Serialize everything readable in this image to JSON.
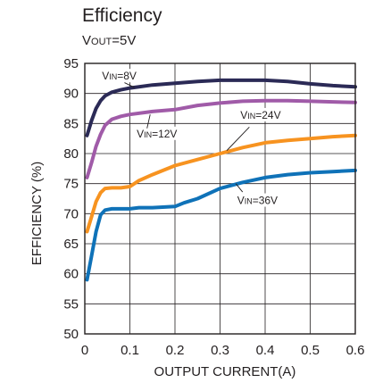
{
  "chart_data": {
    "type": "line",
    "title": "Efficiency",
    "subtitle": {
      "main": "V",
      "sub": "OUT",
      "value": "=5V"
    },
    "xlabel": "OUTPUT CURRENT(A)",
    "ylabel": "EFFICIENCY (%)",
    "xlim": [
      0,
      0.6
    ],
    "ylim": [
      50,
      95
    ],
    "xticks": [
      0,
      0.1,
      0.2,
      0.3,
      0.4,
      0.5,
      0.6
    ],
    "xtick_labels": [
      "0",
      "0.1",
      "0.2",
      "0.3",
      "0.4",
      "0.5",
      "0.6"
    ],
    "yticks": [
      50,
      55,
      60,
      65,
      70,
      75,
      80,
      85,
      90,
      95
    ],
    "ytick_labels": [
      "50",
      "55",
      "60",
      "65",
      "70",
      "75",
      "80",
      "85",
      "90",
      "95"
    ],
    "grid": true,
    "series": [
      {
        "name": "VIN=8V",
        "label": {
          "main": "V",
          "sub": "IN",
          "value": "=8V"
        },
        "color": "#2b2a56",
        "x": [
          0.005,
          0.015,
          0.025,
          0.035,
          0.045,
          0.06,
          0.08,
          0.1,
          0.15,
          0.2,
          0.25,
          0.3,
          0.35,
          0.4,
          0.45,
          0.5,
          0.55,
          0.6
        ],
        "y": [
          83,
          85.5,
          87.5,
          88.8,
          89.6,
          90.2,
          90.6,
          90.9,
          91.4,
          91.7,
          92.0,
          92.2,
          92.2,
          92.2,
          92.0,
          91.6,
          91.3,
          91.1
        ]
      },
      {
        "name": "VIN=12V",
        "label": {
          "main": "V",
          "sub": "IN",
          "value": "=12V"
        },
        "color": "#a05ba8",
        "x": [
          0.005,
          0.015,
          0.025,
          0.035,
          0.045,
          0.06,
          0.08,
          0.1,
          0.15,
          0.2,
          0.25,
          0.3,
          0.35,
          0.4,
          0.45,
          0.5,
          0.55,
          0.6
        ],
        "y": [
          76,
          78.5,
          81.2,
          83.2,
          84.7,
          85.7,
          86.2,
          86.5,
          87.0,
          87.3,
          88.0,
          88.4,
          88.7,
          88.8,
          88.8,
          88.7,
          88.6,
          88.5
        ]
      },
      {
        "name": "VIN=24V",
        "label": {
          "main": "V",
          "sub": "IN",
          "value": "=24V"
        },
        "color": "#f79320",
        "x": [
          0.005,
          0.015,
          0.025,
          0.035,
          0.045,
          0.06,
          0.08,
          0.1,
          0.12,
          0.15,
          0.2,
          0.25,
          0.3,
          0.35,
          0.4,
          0.45,
          0.5,
          0.55,
          0.6
        ],
        "y": [
          67,
          69.5,
          72,
          73.5,
          74.2,
          74.3,
          74.3,
          74.5,
          75.5,
          76.5,
          78.0,
          79.0,
          80.0,
          81.0,
          81.8,
          82.2,
          82.5,
          82.8,
          83.0
        ]
      },
      {
        "name": "VIN=36V",
        "label": {
          "main": "V",
          "sub": "IN",
          "value": "=36V"
        },
        "color": "#0f72b8",
        "x": [
          0.005,
          0.015,
          0.025,
          0.035,
          0.045,
          0.06,
          0.08,
          0.1,
          0.12,
          0.15,
          0.2,
          0.22,
          0.25,
          0.3,
          0.35,
          0.4,
          0.45,
          0.5,
          0.55,
          0.6
        ],
        "y": [
          59,
          63,
          67,
          69.8,
          70.6,
          70.8,
          70.8,
          70.8,
          71.0,
          71.0,
          71.2,
          71.8,
          72.5,
          74.2,
          75.2,
          76.0,
          76.5,
          76.8,
          77.0,
          77.2
        ]
      }
    ]
  }
}
